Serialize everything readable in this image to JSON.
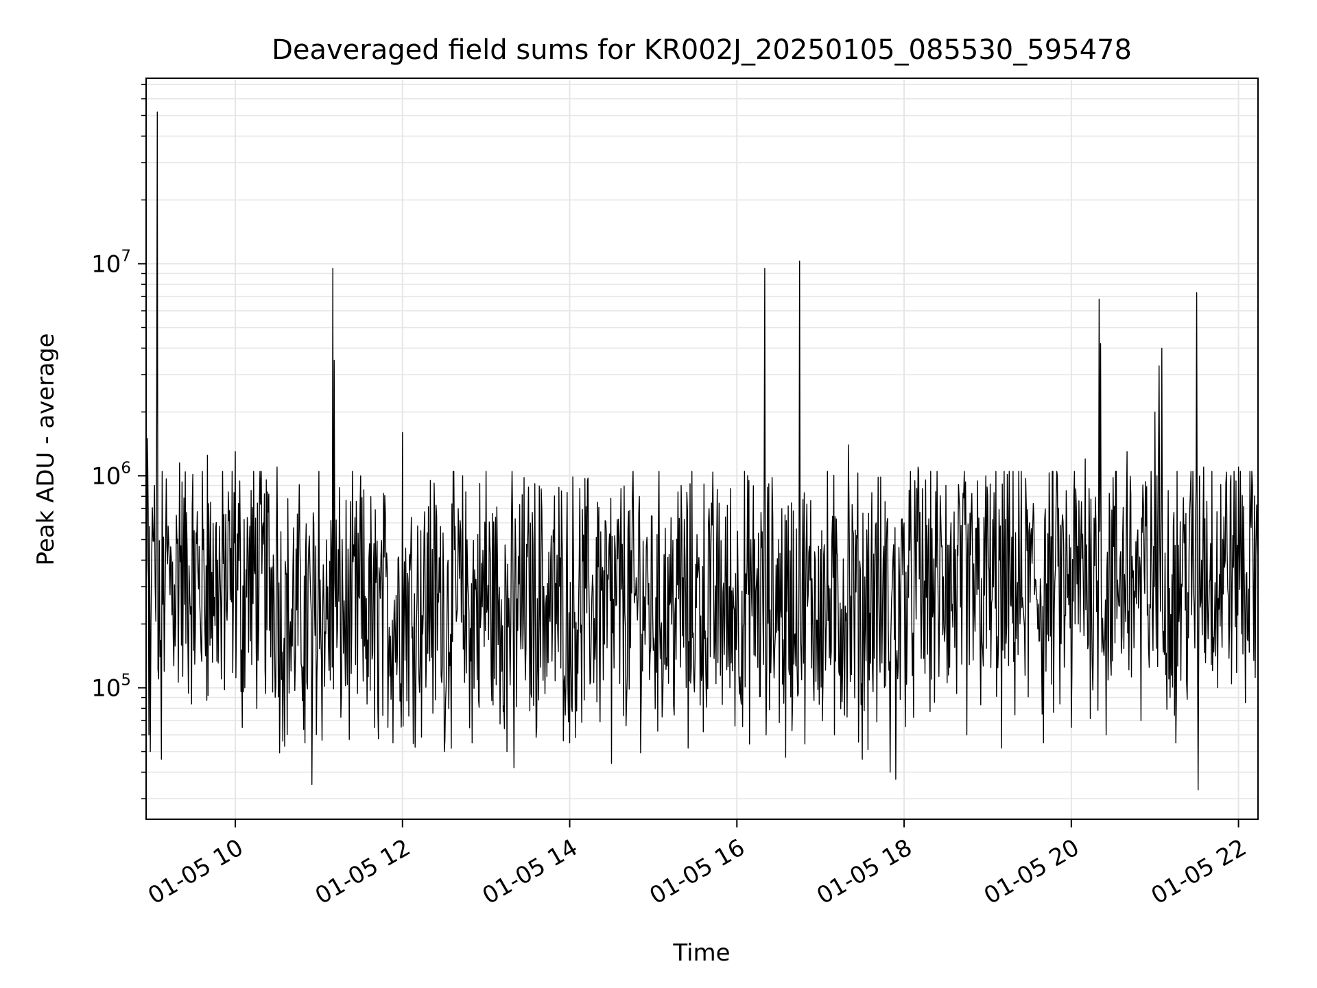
{
  "chart_data": {
    "type": "line",
    "title": "Deaveraged field sums for KR002J_20250105_085530_595478",
    "xlabel": "Time",
    "ylabel": "Peak ADU - average",
    "x_is_time": true,
    "xlim": [
      "01-05 08:56",
      "01-05 22:14"
    ],
    "xticks": [
      "01-05 10",
      "01-05 12",
      "01-05 14",
      "01-05 16",
      "01-05 18",
      "01-05 20",
      "01-05 22"
    ],
    "y_scale": "log",
    "ylim": [
      24000,
      75000000
    ],
    "yticks": [
      {
        "base": "10",
        "exp": "5",
        "value": 100000
      },
      {
        "base": "10",
        "exp": "6",
        "value": 1000000
      },
      {
        "base": "10",
        "exp": "7",
        "value": 10000000
      }
    ],
    "grid": true,
    "line_color": "#000000",
    "grid_color": "#e6e6e6",
    "series": [
      {
        "points": [
          [
            "01-05 08:56",
            300000
          ],
          [
            "01-05 08:57",
            1500000
          ],
          [
            "01-05 08:58",
            60000
          ],
          [
            "01-05 08:59",
            50000
          ],
          [
            "01-05 09:00",
            400000
          ],
          [
            "01-05 09:02",
            900000
          ],
          [
            "01-05 09:04",
            52000000
          ],
          [
            "01-05 09:05",
            110000
          ],
          [
            "01-05 09:06",
            140000
          ],
          [
            "01-05 09:07",
            46000
          ],
          [
            "01-05 09:10",
            450000
          ],
          [
            "01-05 09:20",
            1150000
          ],
          [
            "01-05 09:30",
            150000
          ],
          [
            "01-05 09:40",
            1250000
          ],
          [
            "01-05 09:50",
            110000
          ],
          [
            "01-05 10:00",
            1300000
          ],
          [
            "01-05 10:05",
            65000
          ],
          [
            "01-05 10:20",
            600000
          ],
          [
            "01-05 10:30",
            1100000
          ],
          [
            "01-05 10:40",
            120000
          ],
          [
            "01-05 10:50",
            55000
          ],
          [
            "01-05 11:00",
            1050000
          ],
          [
            "01-05 10:55",
            35000
          ],
          [
            "01-05 11:10",
            9500000
          ],
          [
            "01-05 11:11",
            3500000
          ],
          [
            "01-05 11:20",
            150000
          ],
          [
            "01-05 11:30",
            1000000
          ],
          [
            "01-05 11:40",
            65000
          ],
          [
            "01-05 12:00",
            1600000
          ],
          [
            "01-05 12:10",
            200000
          ],
          [
            "01-05 12:20",
            950000
          ],
          [
            "01-05 12:30",
            50000
          ],
          [
            "01-05 12:40",
            700000
          ],
          [
            "01-05 12:50",
            55000
          ],
          [
            "01-05 13:00",
            1050000
          ],
          [
            "01-05 13:15",
            50000
          ],
          [
            "01-05 13:20",
            42000
          ],
          [
            "01-05 13:40",
            700000
          ],
          [
            "01-05 14:00",
            55000
          ],
          [
            "01-05 14:20",
            750000
          ],
          [
            "01-05 14:30",
            44000
          ],
          [
            "01-05 14:50",
            800000
          ],
          [
            "01-05 15:00",
            150000
          ],
          [
            "01-05 15:20",
            900000
          ],
          [
            "01-05 15:25",
            52000
          ],
          [
            "01-05 15:40",
            700000
          ],
          [
            "01-05 15:55",
            100000
          ],
          [
            "01-05 16:10",
            500000
          ],
          [
            "01-05 16:20",
            9500000
          ],
          [
            "01-05 16:21",
            60000
          ],
          [
            "01-05 16:30",
            500000
          ],
          [
            "01-05 16:35",
            47000
          ],
          [
            "01-05 16:45",
            10300000
          ],
          [
            "01-05 16:46",
            150000
          ],
          [
            "01-05 17:00",
            450000
          ],
          [
            "01-05 17:10",
            60000
          ],
          [
            "01-05 17:20",
            1400000
          ],
          [
            "01-05 17:30",
            46000
          ],
          [
            "01-05 17:40",
            600000
          ],
          [
            "01-05 17:50",
            40000
          ],
          [
            "01-05 17:54",
            37000
          ],
          [
            "01-05 18:00",
            600000
          ],
          [
            "01-05 18:10",
            1100000
          ],
          [
            "01-05 18:30",
            900000
          ],
          [
            "01-05 18:45",
            60000
          ],
          [
            "01-05 19:00",
            800000
          ],
          [
            "01-05 19:10",
            52000
          ],
          [
            "01-05 19:30",
            600000
          ],
          [
            "01-05 19:40",
            55000
          ],
          [
            "01-05 19:50",
            1000000
          ],
          [
            "01-05 20:00",
            65000
          ],
          [
            "01-05 20:10",
            1200000
          ],
          [
            "01-05 20:20",
            6800000
          ],
          [
            "01-05 20:21",
            4200000
          ],
          [
            "01-05 20:25",
            60000
          ],
          [
            "01-05 20:40",
            1300000
          ],
          [
            "01-05 20:50",
            70000
          ],
          [
            "01-05 21:00",
            2000000
          ],
          [
            "01-05 21:03",
            3300000
          ],
          [
            "01-05 21:05",
            4000000
          ],
          [
            "01-05 21:10",
            110000
          ],
          [
            "01-05 21:15",
            55000
          ],
          [
            "01-05 21:30",
            7300000
          ],
          [
            "01-05 21:31",
            33000
          ],
          [
            "01-05 21:35",
            1100000
          ],
          [
            "01-05 21:45",
            100000
          ],
          [
            "01-05 22:00",
            1100000
          ],
          [
            "01-05 22:05",
            85000
          ],
          [
            "01-05 22:10",
            900000
          ],
          [
            "01-05 22:14",
            400000
          ]
        ]
      }
    ]
  }
}
